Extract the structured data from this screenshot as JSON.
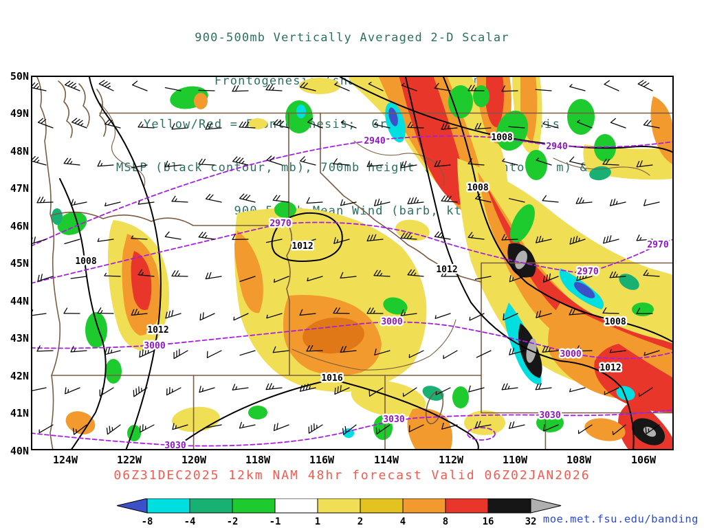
{
  "title": {
    "line1": "900-500mb Vertically Averaged 2-D Scalar",
    "line2": "Frontogenesis (shaded, K/6hr/100km)",
    "line3": "Yellow/Red = Frontogenesis;  Green/Blue = Frontolysis",
    "line4": "MSLP (black contour, mb), 700mb height (purple contour, m) &",
    "line5": "900-500mb Mean Wind (barb, kt)"
  },
  "caption": "06Z31DEC2025 12km NAM 48hr forecast Valid 06Z02JAN2026",
  "link": "moe.met.fsu.edu/banding",
  "axes": {
    "lat_ticks": [
      "50N",
      "49N",
      "48N",
      "47N",
      "46N",
      "45N",
      "44N",
      "43N",
      "42N",
      "41N",
      "40N"
    ],
    "lon_ticks": [
      "124W",
      "122W",
      "120W",
      "118W",
      "116W",
      "114W",
      "112W",
      "110W",
      "108W",
      "106W"
    ]
  },
  "colors": {
    "title": "#2c6e60",
    "caption": "#f25b52",
    "link": "#2b49d8",
    "mslp_contour": "#000000",
    "height_contour": "#a51fe0",
    "state_border": "#7a5c42"
  },
  "chart_data": {
    "type": "heatmap",
    "field": "900-500mb Vertically Averaged 2-D Scalar Frontogenesis",
    "shading_units": "K/6hr/100km",
    "shading_meaning": {
      "yellow_red": "Frontogenesis",
      "green_blue": "Frontolysis"
    },
    "overlays": [
      "MSLP (black contour, mb)",
      "700mb height (purple contour, m)",
      "900-500mb Mean Wind (barb, kt)"
    ],
    "model": "12km NAM",
    "init": "06Z31DEC2025",
    "forecast_hour": "48hr",
    "valid": "06Z02JAN2026",
    "lat_range": [
      "40N",
      "50N"
    ],
    "lon_range": [
      "124W",
      "106W"
    ],
    "colorbar": {
      "levels": [
        -8,
        -4,
        -2,
        -1,
        1,
        2,
        4,
        8,
        16,
        32
      ],
      "colors": [
        "#3c50c8",
        "#00dfe0",
        "#18b173",
        "#1ecb2e",
        "#ffffff",
        "#f0df55",
        "#e4c320",
        "#f29a2e",
        "#e8372a",
        "#161616",
        "#b0b0b0"
      ]
    },
    "mslp_contours_mb": [
      1008,
      1012,
      1016
    ],
    "height_contours_m": [
      2940,
      2970,
      3000,
      3030
    ],
    "mslp_labels": [
      "1008",
      "1008",
      "1008",
      "1008",
      "1012",
      "1012",
      "1012",
      "1012",
      "1016"
    ],
    "height_labels": [
      "2940",
      "2940",
      "2970",
      "2970",
      "2970",
      "3000",
      "3000",
      "3000",
      "3030",
      "3030",
      "3030"
    ]
  }
}
